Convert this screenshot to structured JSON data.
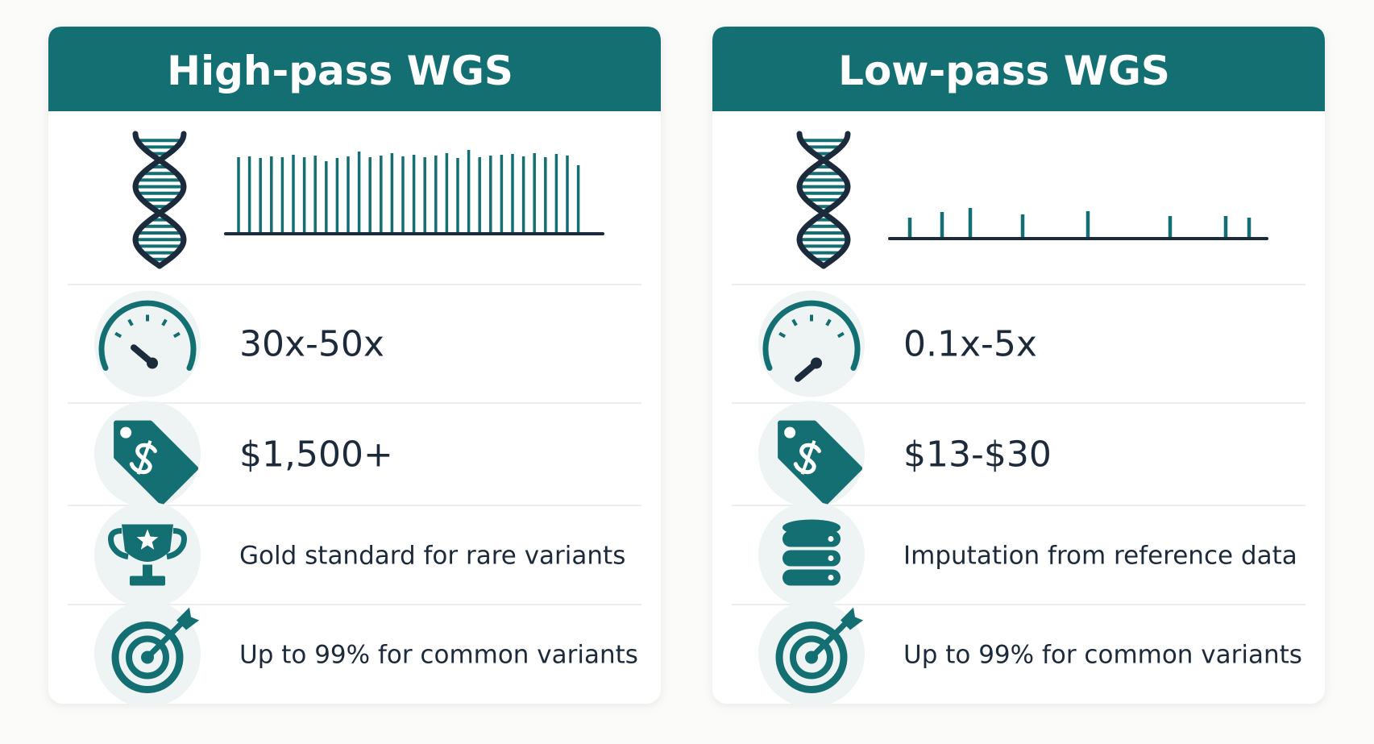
{
  "panels": [
    {
      "title": "High-pass WGS",
      "coverage": "30x-50x",
      "cost": "$1,500+",
      "strength": "Gold standard for rare variants",
      "accuracy": "Up to 99% for common variants"
    },
    {
      "title": "Low-pass WGS",
      "coverage": "0.1x-5x",
      "cost": "$13-$30",
      "strength": "Imputation from reference data",
      "accuracy": "Up to 99% for common variants"
    }
  ]
}
